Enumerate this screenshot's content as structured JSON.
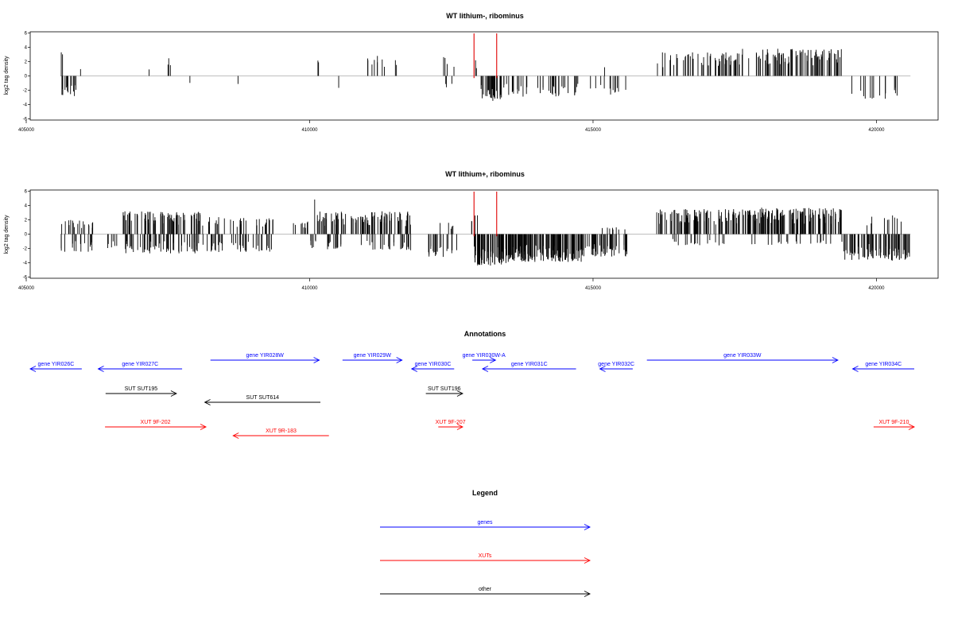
{
  "chart_data": [
    {
      "type": "bar",
      "title": "WT lithium-, ribominus",
      "ylabel": "log2 tag density",
      "xlim": [
        405000,
        421200
      ],
      "ylim": [
        -6,
        6
      ],
      "xticks": [
        "405000",
        "410000",
        "415000",
        "420000"
      ],
      "yticks": [
        "6",
        "4",
        "2",
        "0",
        "-2",
        "-4",
        "-6"
      ],
      "baseline": 0,
      "markers": [
        412900,
        413300
      ],
      "marker_color": "#e00000",
      "bar_color": "#000000",
      "seed": 11,
      "clusters": [
        {
          "from": 405600,
          "to": 405950,
          "n": 14,
          "sign": -1,
          "amp": 3.0
        },
        {
          "from": 405600,
          "to": 405650,
          "n": 2,
          "sign": 1,
          "amp": 3.4
        },
        {
          "from": 405900,
          "to": 405960,
          "n": 1,
          "sign": 1,
          "amp": 2.1
        },
        {
          "from": 407150,
          "to": 407200,
          "n": 1,
          "sign": 1,
          "amp": 1.0
        },
        {
          "from": 407500,
          "to": 407550,
          "n": 3,
          "sign": 1,
          "amp": 2.6
        },
        {
          "from": 407850,
          "to": 407900,
          "n": 1,
          "sign": -1,
          "amp": 1.0
        },
        {
          "from": 408700,
          "to": 408750,
          "n": 1,
          "sign": -1,
          "amp": 2.0
        },
        {
          "from": 410100,
          "to": 410200,
          "n": 2,
          "sign": 1,
          "amp": 2.6
        },
        {
          "from": 410500,
          "to": 410550,
          "n": 1,
          "sign": -1,
          "amp": 2.0
        },
        {
          "from": 411000,
          "to": 411700,
          "n": 10,
          "sign": 1,
          "amp": 2.8
        },
        {
          "from": 412350,
          "to": 412550,
          "n": 4,
          "sign": 1,
          "amp": 3.0
        },
        {
          "from": 412350,
          "to": 412550,
          "n": 3,
          "sign": -1,
          "amp": 1.6
        },
        {
          "from": 412900,
          "to": 412950,
          "n": 2,
          "sign": 1,
          "amp": 2.5
        },
        {
          "from": 413000,
          "to": 413400,
          "n": 30,
          "sign": -1,
          "amp": 3.6
        },
        {
          "from": 413400,
          "to": 414700,
          "n": 35,
          "sign": -1,
          "amp": 2.9
        },
        {
          "from": 414700,
          "to": 415200,
          "n": 6,
          "sign": -1,
          "amp": 1.8
        },
        {
          "from": 415200,
          "to": 415600,
          "n": 8,
          "sign": -1,
          "amp": 2.6
        },
        {
          "from": 415200,
          "to": 415300,
          "n": 1,
          "sign": 1,
          "amp": 1.5
        },
        {
          "from": 416100,
          "to": 417500,
          "n": 45,
          "sign": 1,
          "amp": 3.3
        },
        {
          "from": 417500,
          "to": 419400,
          "n": 90,
          "sign": 1,
          "amp": 3.8
        },
        {
          "from": 419550,
          "to": 420450,
          "n": 14,
          "sign": -1,
          "amp": 3.2
        }
      ]
    },
    {
      "type": "bar",
      "title": "WT lithium+, ribominus",
      "ylabel": "log2 tag density",
      "xlim": [
        405000,
        421200
      ],
      "ylim": [
        -6,
        6
      ],
      "xticks": [
        "405000",
        "410000",
        "415000",
        "420000"
      ],
      "yticks": [
        "6",
        "4",
        "2",
        "0",
        "-2",
        "-4",
        "-6"
      ],
      "baseline": 0,
      "markers": [
        412900,
        413300
      ],
      "marker_color": "#e00000",
      "bar_color": "#000000",
      "seed": 29,
      "clusters": [
        {
          "from": 405600,
          "to": 406200,
          "n": 18,
          "sign": 1,
          "amp": 2.0
        },
        {
          "from": 405600,
          "to": 406200,
          "n": 16,
          "sign": -1,
          "amp": 2.5
        },
        {
          "from": 406400,
          "to": 406700,
          "n": 6,
          "sign": -1,
          "amp": 2.0
        },
        {
          "from": 406700,
          "to": 408100,
          "n": 80,
          "sign": 1,
          "amp": 3.2
        },
        {
          "from": 406700,
          "to": 408100,
          "n": 60,
          "sign": -1,
          "amp": 2.7
        },
        {
          "from": 408100,
          "to": 409400,
          "n": 36,
          "sign": 1,
          "amp": 2.4
        },
        {
          "from": 408100,
          "to": 409400,
          "n": 40,
          "sign": -1,
          "amp": 2.5
        },
        {
          "from": 409600,
          "to": 410000,
          "n": 10,
          "sign": 1,
          "amp": 1.8
        },
        {
          "from": 410050,
          "to": 410120,
          "n": 1,
          "sign": 1,
          "amp": 5.6
        },
        {
          "from": 410000,
          "to": 410600,
          "n": 20,
          "sign": -1,
          "amp": 2.2
        },
        {
          "from": 410100,
          "to": 410800,
          "n": 32,
          "sign": 1,
          "amp": 3.2
        },
        {
          "from": 410800,
          "to": 411800,
          "n": 60,
          "sign": 1,
          "amp": 3.2
        },
        {
          "from": 410900,
          "to": 411800,
          "n": 25,
          "sign": -1,
          "amp": 2.3
        },
        {
          "from": 412000,
          "to": 412600,
          "n": 20,
          "sign": -1,
          "amp": 3.2
        },
        {
          "from": 412300,
          "to": 412600,
          "n": 5,
          "sign": 1,
          "amp": 1.6
        },
        {
          "from": 412850,
          "to": 413000,
          "n": 4,
          "sign": 1,
          "amp": 2.8
        },
        {
          "from": 412900,
          "to": 413500,
          "n": 70,
          "sign": -1,
          "amp": 4.4
        },
        {
          "from": 413500,
          "to": 414800,
          "n": 150,
          "sign": -1,
          "amp": 3.9
        },
        {
          "from": 414800,
          "to": 415600,
          "n": 50,
          "sign": -1,
          "amp": 3.2
        },
        {
          "from": 415100,
          "to": 415600,
          "n": 8,
          "sign": 1,
          "amp": 1.0
        },
        {
          "from": 416100,
          "to": 417600,
          "n": 90,
          "sign": 1,
          "amp": 3.5
        },
        {
          "from": 416300,
          "to": 417400,
          "n": 18,
          "sign": -1,
          "amp": 1.6
        },
        {
          "from": 417600,
          "to": 419400,
          "n": 140,
          "sign": 1,
          "amp": 3.7
        },
        {
          "from": 417600,
          "to": 419400,
          "n": 20,
          "sign": -1,
          "amp": 1.5
        },
        {
          "from": 419400,
          "to": 420600,
          "n": 80,
          "sign": -1,
          "amp": 3.7
        },
        {
          "from": 419800,
          "to": 420600,
          "n": 10,
          "sign": 1,
          "amp": 2.8
        }
      ]
    }
  ],
  "annotations": {
    "title": "Annotations",
    "features": [
      {
        "label": "gene YIR026C",
        "kind": "gene",
        "strand": "-",
        "start": 405000,
        "end": 405980,
        "row": 1
      },
      {
        "label": "gene YIR027C",
        "kind": "gene",
        "strand": "-",
        "start": 406270,
        "end": 407750,
        "row": 1
      },
      {
        "label": "gene YIR028W",
        "kind": "gene",
        "strand": "+",
        "start": 408250,
        "end": 410170,
        "row": 0
      },
      {
        "label": "gene YIR029W",
        "kind": "gene",
        "strand": "+",
        "start": 410580,
        "end": 411630,
        "row": 0
      },
      {
        "label": "gene YIR030C",
        "kind": "gene",
        "strand": "-",
        "start": 411800,
        "end": 412550,
        "row": 1
      },
      {
        "label": "gene YIR030W-A",
        "kind": "gene",
        "strand": "+",
        "start": 412870,
        "end": 413280,
        "row": 0
      },
      {
        "label": "gene YIR031C",
        "kind": "gene",
        "strand": "-",
        "start": 413050,
        "end": 414700,
        "row": 1
      },
      {
        "label": "gene YIR032C",
        "kind": "gene",
        "strand": "-",
        "start": 415120,
        "end": 415700,
        "row": 1
      },
      {
        "label": "gene YIR033W",
        "kind": "gene",
        "strand": "+",
        "start": 415950,
        "end": 419320,
        "row": 0
      },
      {
        "label": "gene YIR034C",
        "kind": "gene",
        "strand": "-",
        "start": 419580,
        "end": 420720,
        "row": 1
      },
      {
        "label": "SUT SUT195",
        "kind": "other",
        "strand": "+",
        "start": 406400,
        "end": 407650,
        "row": 2
      },
      {
        "label": "SUT SUT614",
        "kind": "other",
        "strand": "-",
        "start": 408150,
        "end": 410190,
        "row": 3
      },
      {
        "label": "SUT SUT196",
        "kind": "other",
        "strand": "+",
        "start": 412050,
        "end": 412700,
        "row": 2
      },
      {
        "label": "XUT 9F-202",
        "kind": "xut",
        "strand": "+",
        "start": 406390,
        "end": 408170,
        "row": 4
      },
      {
        "label": "XUT 9R-183",
        "kind": "xut",
        "strand": "-",
        "start": 408650,
        "end": 410340,
        "row": 5
      },
      {
        "label": "XUT 9F-207",
        "kind": "xut",
        "strand": "+",
        "start": 412270,
        "end": 412700,
        "row": 4
      },
      {
        "label": "XUT 9F-210",
        "kind": "xut",
        "strand": "+",
        "start": 419950,
        "end": 420900,
        "row": 4
      }
    ]
  },
  "legend": {
    "title": "Legend",
    "items": [
      {
        "label": "genes",
        "kind": "gene"
      },
      {
        "label": "XUTs",
        "kind": "xut"
      },
      {
        "label": "other",
        "kind": "other"
      }
    ]
  },
  "colors": {
    "gene": "#0000ff",
    "xut": "#ff0000",
    "other": "#000000",
    "axis": "#000000",
    "baseline": "#aaaaaa"
  }
}
